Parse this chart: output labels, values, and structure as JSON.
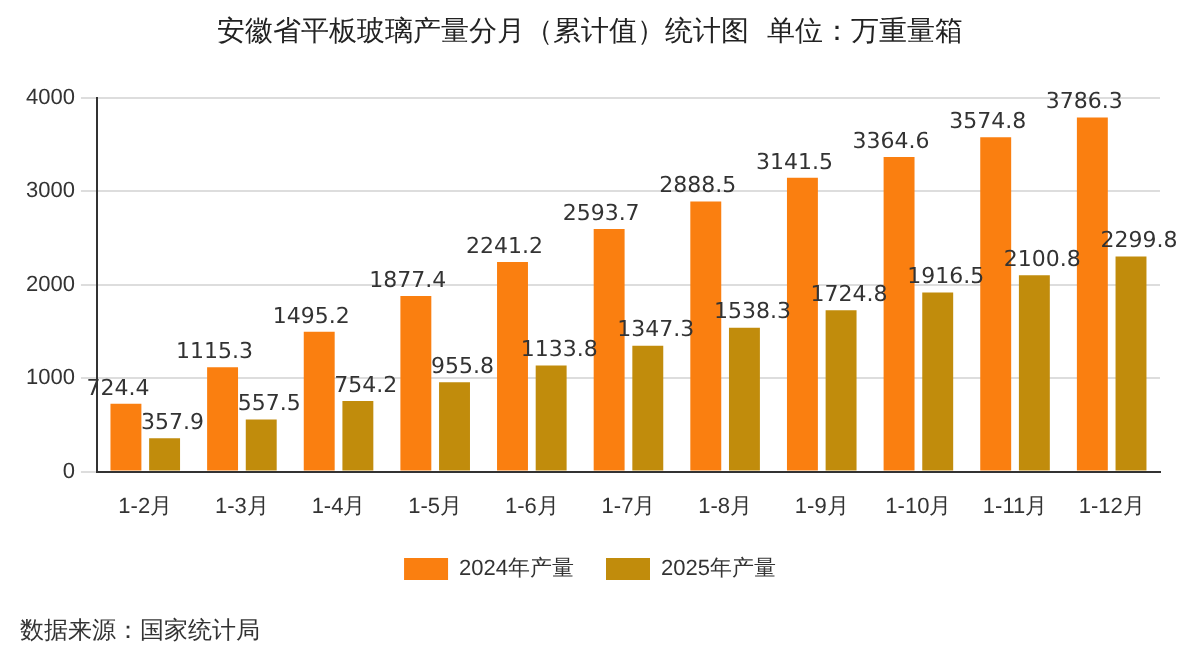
{
  "chart_data": {
    "type": "bar",
    "title": "安徽省平板玻璃产量分月（累计值）统计图  单位：万重量箱",
    "categories": [
      "1-2月",
      "1-3月",
      "1-4月",
      "1-5月",
      "1-6月",
      "1-7月",
      "1-8月",
      "1-9月",
      "1-10月",
      "1-11月",
      "1-12月"
    ],
    "series": [
      {
        "name": "2024年产量",
        "color": "#fa7f10",
        "values": [
          724.4,
          1115.3,
          1495.2,
          1877.4,
          2241.2,
          2593.7,
          2888.5,
          3141.5,
          3364.6,
          3574.8,
          3786.3
        ]
      },
      {
        "name": "2025年产量",
        "color": "#c18c0c",
        "values": [
          357.9,
          557.5,
          754.2,
          955.8,
          1133.8,
          1347.3,
          1538.3,
          1724.8,
          1916.5,
          2100.8,
          2299.8
        ]
      }
    ],
    "ylim": [
      0,
      4000
    ],
    "yticks": [
      0,
      1000,
      2000,
      3000,
      4000
    ],
    "grid": "y",
    "legend": "bottom",
    "data_labels": true,
    "annotations": [
      "数据来源：国家统计局"
    ]
  }
}
